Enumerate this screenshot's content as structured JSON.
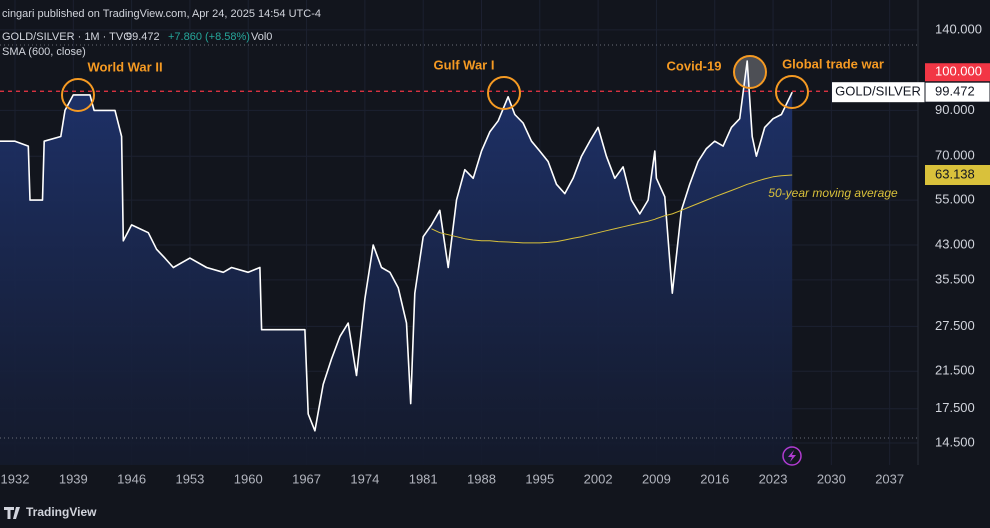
{
  "chart_data": {
    "type": "line",
    "header": {
      "publisher": "cingari published on TradingView.com, Apr 24, 2025 14:54 UTC-4",
      "symbol": "GOLD/SILVER · 1M · TVC",
      "change": "+7.860 (+8.58%)",
      "volume": "Vol0",
      "indicator": "SMA (600, close)",
      "watermark": "TradingView"
    },
    "annotations": [
      "World War II",
      "Gulf War I",
      "Covid-19",
      "Global trade war",
      "50-year moving average"
    ],
    "log_scale": true,
    "grid": true,
    "xlim": [
      1930.2,
      2040.4
    ],
    "xticks": [
      1932,
      1939,
      1946,
      1953,
      1960,
      1967,
      1974,
      1981,
      1988,
      1995,
      2002,
      2009,
      2016,
      2023,
      2030,
      2037
    ],
    "ylim": [
      12.85,
      165
    ],
    "yticks": [
      {
        "value": 14.5,
        "label": "14.500"
      },
      {
        "value": 17.5,
        "label": "17.500"
      },
      {
        "value": 21.5,
        "label": "21.500"
      },
      {
        "value": 27.5,
        "label": "27.500"
      },
      {
        "value": 35.5,
        "label": "35.500"
      },
      {
        "value": 43,
        "label": "43.000"
      },
      {
        "value": 55,
        "label": "55.000"
      },
      {
        "value": 70,
        "label": "70.000"
      },
      {
        "value": 90,
        "label": "90.000"
      },
      {
        "value": 140,
        "label": "140.000"
      }
    ],
    "price_line": {
      "value": 100,
      "label": "100.000",
      "color": "#f23645"
    },
    "x": [
      1930.2,
      1932,
      1933.6,
      1933.8,
      1935.3,
      1935.5,
      1937.5,
      1938,
      1939,
      1941,
      1941.5,
      1944,
      1944.8,
      1945,
      1946,
      1948,
      1949,
      1950,
      1951,
      1953,
      1955,
      1957,
      1958,
      1960,
      1961.4,
      1961.6,
      1966.8,
      1967.2,
      1968,
      1969,
      1970,
      1971,
      1972,
      1973,
      1974,
      1975,
      1976,
      1977,
      1978,
      1979,
      1979.5,
      1980,
      1981,
      1982,
      1983,
      1984,
      1985,
      1986,
      1987,
      1988,
      1989,
      1990,
      1991.2,
      1992,
      1993,
      1994,
      1995,
      1996,
      1997,
      1998,
      1999,
      2000,
      2001,
      2002,
      2003,
      2004,
      2005,
      2006,
      2007,
      2008,
      2008.8,
      2009,
      2010,
      2010.9,
      2012,
      2013,
      2014,
      2015,
      2016,
      2017,
      2018,
      2019,
      2019.9,
      2020.5,
      2021,
      2022,
      2023,
      2024,
      2025.3
    ],
    "series": [
      {
        "name": "GOLD/SILVER",
        "color": "#ffffff",
        "values": [
          76,
          76,
          74,
          55,
          55,
          76,
          78,
          90,
          98,
          98,
          90,
          90,
          78,
          44,
          48,
          46,
          42,
          40,
          38,
          40,
          38,
          37,
          38,
          37,
          38,
          27,
          27,
          17,
          15.5,
          20,
          23,
          26,
          28,
          21,
          32,
          43,
          38,
          37,
          34,
          28,
          18,
          33,
          45,
          48,
          52,
          38,
          55,
          65,
          62,
          72,
          80,
          85,
          97,
          88,
          84,
          76,
          72,
          68,
          60,
          57,
          62,
          70,
          76,
          82,
          70,
          62,
          66,
          55,
          51,
          55,
          72,
          62,
          56,
          33,
          52,
          60,
          68,
          73,
          76,
          74,
          82,
          86,
          118,
          78,
          70,
          82,
          86,
          88,
          99.472
        ]
      },
      {
        "name": "SMA",
        "color": "#d9c13b",
        "values": [
          null,
          null,
          null,
          null,
          null,
          null,
          null,
          null,
          null,
          null,
          null,
          null,
          null,
          null,
          null,
          null,
          null,
          null,
          null,
          null,
          null,
          null,
          null,
          null,
          null,
          null,
          null,
          null,
          null,
          null,
          null,
          null,
          null,
          null,
          null,
          null,
          null,
          null,
          null,
          null,
          null,
          null,
          null,
          47,
          46,
          45.5,
          45,
          44.5,
          44.2,
          44,
          44,
          43.8,
          43.7,
          43.6,
          43.5,
          43.5,
          43.5,
          43.6,
          43.8,
          44.2,
          44.6,
          45,
          45.5,
          46,
          46.5,
          47,
          47.5,
          48,
          48.5,
          49,
          49.5,
          49.7,
          50.5,
          51,
          52,
          53,
          54,
          55,
          56,
          57,
          58,
          59,
          60,
          60.5,
          61,
          61.8,
          62.5,
          62.9,
          63.138
        ]
      }
    ]
  }
}
